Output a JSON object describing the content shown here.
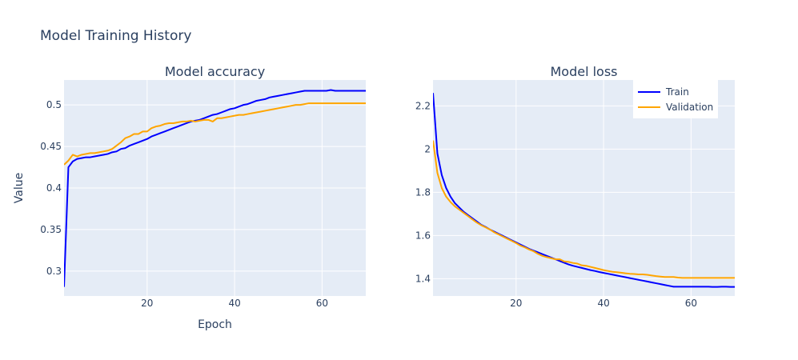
{
  "figure": {
    "title": "Model Training History"
  },
  "chart_data": [
    {
      "type": "line",
      "title": "Model accuracy",
      "xlabel": "Epoch",
      "ylabel": "Value",
      "xlim": [
        1,
        70
      ],
      "ylim": [
        0.27,
        0.53
      ],
      "xticks": [
        20,
        40,
        60
      ],
      "yticks": [
        0.3,
        0.35,
        0.4,
        0.45,
        0.5
      ],
      "ytick_labels": [
        "0.3",
        "0.35",
        "0.4",
        "0.45",
        "0.5"
      ],
      "grid": true,
      "series": [
        {
          "name": "Train",
          "color": "#0000ff",
          "x": [
            1,
            2,
            3,
            4,
            5,
            6,
            7,
            8,
            9,
            10,
            11,
            12,
            13,
            14,
            15,
            16,
            17,
            18,
            19,
            20,
            21,
            22,
            23,
            24,
            25,
            26,
            27,
            28,
            29,
            30,
            31,
            32,
            33,
            34,
            35,
            36,
            37,
            38,
            39,
            40,
            41,
            42,
            43,
            44,
            45,
            46,
            47,
            48,
            49,
            50,
            51,
            52,
            53,
            54,
            55,
            56,
            57,
            58,
            59,
            60,
            61,
            62,
            63,
            64,
            65,
            66,
            67,
            68,
            69,
            70
          ],
          "y": [
            0.281,
            0.425,
            0.432,
            0.435,
            0.436,
            0.437,
            0.437,
            0.438,
            0.439,
            0.44,
            0.441,
            0.443,
            0.444,
            0.447,
            0.448,
            0.451,
            0.453,
            0.455,
            0.457,
            0.459,
            0.462,
            0.464,
            0.466,
            0.468,
            0.47,
            0.472,
            0.474,
            0.476,
            0.478,
            0.48,
            0.481,
            0.482,
            0.484,
            0.486,
            0.488,
            0.489,
            0.491,
            0.493,
            0.495,
            0.496,
            0.498,
            0.5,
            0.501,
            0.503,
            0.505,
            0.506,
            0.507,
            0.509,
            0.51,
            0.511,
            0.512,
            0.513,
            0.514,
            0.515,
            0.516,
            0.517,
            0.517,
            0.517,
            0.517,
            0.517,
            0.517,
            0.518,
            0.517,
            0.517,
            0.517,
            0.517,
            0.517,
            0.517,
            0.517,
            0.517
          ]
        },
        {
          "name": "Validation",
          "color": "#ffa500",
          "x": [
            1,
            2,
            3,
            4,
            5,
            6,
            7,
            8,
            9,
            10,
            11,
            12,
            13,
            14,
            15,
            16,
            17,
            18,
            19,
            20,
            21,
            22,
            23,
            24,
            25,
            26,
            27,
            28,
            29,
            30,
            31,
            32,
            33,
            34,
            35,
            36,
            37,
            38,
            39,
            40,
            41,
            42,
            43,
            44,
            45,
            46,
            47,
            48,
            49,
            50,
            51,
            52,
            53,
            54,
            55,
            56,
            57,
            58,
            59,
            60,
            61,
            62,
            63,
            64,
            65,
            66,
            67,
            68,
            69,
            70
          ],
          "y": [
            0.428,
            0.433,
            0.44,
            0.438,
            0.44,
            0.441,
            0.442,
            0.442,
            0.443,
            0.444,
            0.445,
            0.447,
            0.451,
            0.455,
            0.46,
            0.462,
            0.465,
            0.465,
            0.468,
            0.468,
            0.472,
            0.474,
            0.475,
            0.477,
            0.478,
            0.478,
            0.479,
            0.48,
            0.48,
            0.481,
            0.48,
            0.481,
            0.482,
            0.482,
            0.48,
            0.484,
            0.484,
            0.485,
            0.486,
            0.487,
            0.488,
            0.488,
            0.489,
            0.49,
            0.491,
            0.492,
            0.493,
            0.494,
            0.495,
            0.496,
            0.497,
            0.498,
            0.499,
            0.5,
            0.5,
            0.501,
            0.502,
            0.502,
            0.502,
            0.502,
            0.502,
            0.502,
            0.502,
            0.502,
            0.502,
            0.502,
            0.502,
            0.502,
            0.502,
            0.502
          ]
        }
      ]
    },
    {
      "type": "line",
      "title": "Model loss",
      "xlabel": "",
      "ylabel": "",
      "xlim": [
        1,
        70
      ],
      "ylim": [
        1.32,
        2.32
      ],
      "xticks": [
        20,
        40,
        60
      ],
      "yticks": [
        1.4,
        1.6,
        1.8,
        2.0,
        2.2
      ],
      "ytick_labels": [
        "1.4",
        "1.6",
        "1.8",
        "2",
        "2.2"
      ],
      "grid": true,
      "legend": {
        "placement": "top-right"
      },
      "series": [
        {
          "name": "Train",
          "color": "#0000ff",
          "x": [
            1,
            2,
            3,
            4,
            5,
            6,
            7,
            8,
            9,
            10,
            11,
            12,
            13,
            14,
            15,
            16,
            17,
            18,
            19,
            20,
            21,
            22,
            23,
            24,
            25,
            26,
            27,
            28,
            29,
            30,
            31,
            32,
            33,
            34,
            35,
            36,
            37,
            38,
            39,
            40,
            41,
            42,
            43,
            44,
            45,
            46,
            47,
            48,
            49,
            50,
            51,
            52,
            53,
            54,
            55,
            56,
            57,
            58,
            59,
            60,
            61,
            62,
            63,
            64,
            65,
            66,
            67,
            68,
            69,
            70
          ],
          "y": [
            2.26,
            1.98,
            1.88,
            1.82,
            1.78,
            1.75,
            1.73,
            1.71,
            1.695,
            1.68,
            1.665,
            1.65,
            1.64,
            1.628,
            1.618,
            1.608,
            1.598,
            1.588,
            1.578,
            1.568,
            1.558,
            1.548,
            1.538,
            1.53,
            1.522,
            1.514,
            1.506,
            1.498,
            1.49,
            1.482,
            1.474,
            1.466,
            1.46,
            1.455,
            1.45,
            1.445,
            1.44,
            1.436,
            1.431,
            1.427,
            1.423,
            1.419,
            1.415,
            1.411,
            1.407,
            1.403,
            1.399,
            1.395,
            1.391,
            1.387,
            1.383,
            1.379,
            1.375,
            1.371,
            1.367,
            1.363,
            1.363,
            1.363,
            1.363,
            1.363,
            1.363,
            1.363,
            1.363,
            1.363,
            1.362,
            1.362,
            1.363,
            1.363,
            1.362,
            1.362
          ]
        },
        {
          "name": "Validation",
          "color": "#ffa500",
          "x": [
            1,
            2,
            3,
            4,
            5,
            6,
            7,
            8,
            9,
            10,
            11,
            12,
            13,
            14,
            15,
            16,
            17,
            18,
            19,
            20,
            21,
            22,
            23,
            24,
            25,
            26,
            27,
            28,
            29,
            30,
            31,
            32,
            33,
            34,
            35,
            36,
            37,
            38,
            39,
            40,
            41,
            42,
            43,
            44,
            45,
            46,
            47,
            48,
            49,
            50,
            51,
            52,
            53,
            54,
            55,
            56,
            57,
            58,
            59,
            60,
            61,
            62,
            63,
            64,
            65,
            66,
            67,
            68,
            69,
            70
          ],
          "y": [
            2.04,
            1.89,
            1.82,
            1.78,
            1.755,
            1.735,
            1.72,
            1.705,
            1.69,
            1.675,
            1.66,
            1.648,
            1.638,
            1.628,
            1.615,
            1.605,
            1.595,
            1.585,
            1.575,
            1.565,
            1.553,
            1.545,
            1.535,
            1.527,
            1.515,
            1.506,
            1.5,
            1.495,
            1.49,
            1.49,
            1.48,
            1.478,
            1.473,
            1.47,
            1.462,
            1.46,
            1.455,
            1.45,
            1.445,
            1.44,
            1.436,
            1.432,
            1.43,
            1.428,
            1.425,
            1.423,
            1.422,
            1.42,
            1.42,
            1.418,
            1.415,
            1.412,
            1.41,
            1.408,
            1.408,
            1.408,
            1.405,
            1.404,
            1.404,
            1.404,
            1.404,
            1.404,
            1.404,
            1.404,
            1.404,
            1.404,
            1.404,
            1.404,
            1.404,
            1.404
          ]
        }
      ]
    }
  ]
}
